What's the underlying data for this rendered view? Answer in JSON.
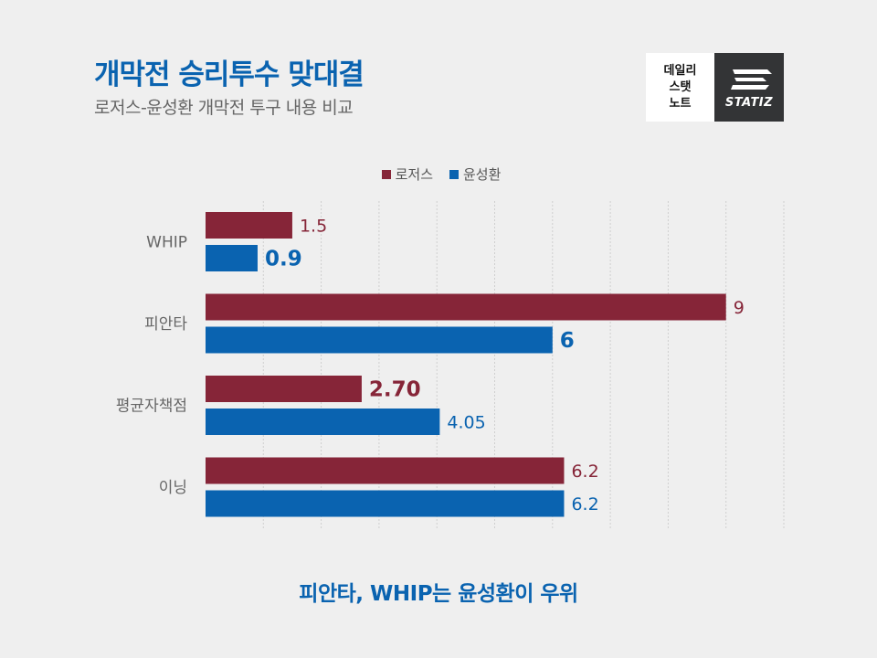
{
  "header": {
    "title": "개막전 승리투수 맞대결",
    "subtitle": "로저스-윤성환 개막전 투구 내용 비교"
  },
  "brand": {
    "left_lines": [
      "데일리",
      "스탯",
      "노트"
    ],
    "right_name": "STATIZ"
  },
  "chart_data": {
    "type": "bar",
    "orientation": "horizontal",
    "categories": [
      "WHIP",
      "피안타",
      "평균자책점",
      "이닝"
    ],
    "series": [
      {
        "name": "로저스",
        "color": "#862538",
        "values": [
          1.5,
          9,
          2.7,
          6.2
        ],
        "labels": [
          "1.5",
          "9",
          "2.70",
          "6.2"
        ],
        "label_bold": [
          false,
          false,
          true,
          false
        ]
      },
      {
        "name": "윤성환",
        "color": "#0a63b0",
        "values": [
          0.9,
          6,
          4.05,
          6.2
        ],
        "labels": [
          "0.9",
          "6",
          "4.05",
          "6.2"
        ],
        "label_bold": [
          true,
          true,
          false,
          false
        ]
      }
    ],
    "xlim": [
      0,
      10
    ],
    "grid": true,
    "legend": "top-center"
  },
  "footer": {
    "caption": "피안타, WHIP는 윤성환이 우위"
  }
}
